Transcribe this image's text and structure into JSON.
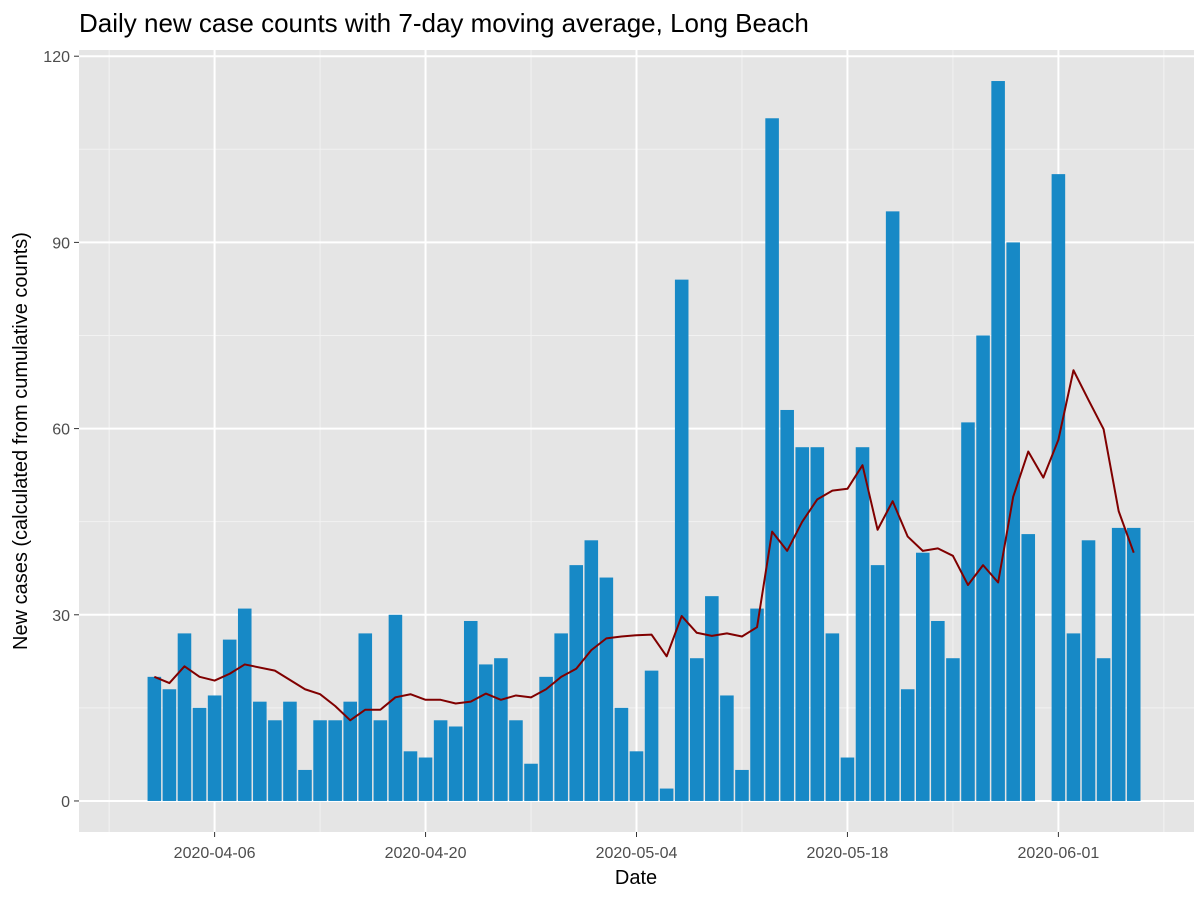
{
  "chart_data": {
    "type": "bar",
    "title": "Daily new case counts with 7-day moving average, Long Beach",
    "xlabel": "Date",
    "ylabel": "New cases (calculated from cumulative counts)",
    "ylim": [
      -5,
      121
    ],
    "xlim": [
      "2020-03-28",
      "2020-06-10"
    ],
    "y_ticks": [
      0,
      30,
      60,
      90,
      120
    ],
    "x_ticks": [
      "2020-04-06",
      "2020-04-20",
      "2020-05-04",
      "2020-05-18",
      "2020-06-01"
    ],
    "grid": true,
    "colors": {
      "panel": "#e5e5e5",
      "grid_major": "#ffffff",
      "bar": "#1789c6",
      "line": "#800000"
    },
    "series": [
      {
        "type": "bar",
        "x": [
          "2020-04-02",
          "2020-04-03",
          "2020-04-04",
          "2020-04-05",
          "2020-04-06",
          "2020-04-07",
          "2020-04-08",
          "2020-04-09",
          "2020-04-10",
          "2020-04-11",
          "2020-04-12",
          "2020-04-13",
          "2020-04-14",
          "2020-04-15",
          "2020-04-16",
          "2020-04-17",
          "2020-04-18",
          "2020-04-19",
          "2020-04-20",
          "2020-04-21",
          "2020-04-22",
          "2020-04-23",
          "2020-04-24",
          "2020-04-25",
          "2020-04-26",
          "2020-04-27",
          "2020-04-28",
          "2020-04-29",
          "2020-04-30",
          "2020-05-01",
          "2020-05-02",
          "2020-05-03",
          "2020-05-04",
          "2020-05-05",
          "2020-05-06",
          "2020-05-07",
          "2020-05-08",
          "2020-05-09",
          "2020-05-10",
          "2020-05-11",
          "2020-05-12",
          "2020-05-13",
          "2020-05-14",
          "2020-05-15",
          "2020-05-16",
          "2020-05-17",
          "2020-05-18",
          "2020-05-19",
          "2020-05-20",
          "2020-05-21",
          "2020-05-22",
          "2020-05-23",
          "2020-05-24",
          "2020-05-25",
          "2020-05-26",
          "2020-05-27",
          "2020-05-28",
          "2020-05-29",
          "2020-05-30",
          "2020-06-01",
          "2020-06-02",
          "2020-06-03",
          "2020-06-04",
          "2020-06-05",
          "2020-06-06"
        ],
        "values": [
          20,
          18,
          27,
          15,
          17,
          26,
          31,
          16,
          13,
          16,
          5,
          13,
          13,
          16,
          27,
          13,
          30,
          8,
          7,
          13,
          12,
          29,
          22,
          23,
          13,
          6,
          20,
          27,
          38,
          42,
          36,
          15,
          8,
          21,
          2,
          84,
          23,
          33,
          17,
          5,
          31,
          110,
          63,
          57,
          57,
          27,
          7,
          57,
          38,
          95,
          18,
          40,
          29,
          23,
          61,
          75,
          116,
          90,
          43,
          101,
          27,
          42,
          23,
          44,
          44
        ]
      },
      {
        "type": "line",
        "x": [
          "2020-04-02",
          "2020-04-03",
          "2020-04-04",
          "2020-04-05",
          "2020-04-06",
          "2020-04-07",
          "2020-04-08",
          "2020-04-10",
          "2020-04-12",
          "2020-04-13",
          "2020-04-14",
          "2020-04-15",
          "2020-04-16",
          "2020-04-17",
          "2020-04-18",
          "2020-04-19",
          "2020-04-20",
          "2020-04-21",
          "2020-04-22",
          "2020-04-23",
          "2020-04-24",
          "2020-04-25",
          "2020-04-26",
          "2020-04-27",
          "2020-04-28",
          "2020-04-29",
          "2020-04-30",
          "2020-05-01",
          "2020-05-02",
          "2020-05-03",
          "2020-05-04",
          "2020-05-05",
          "2020-05-06",
          "2020-05-07",
          "2020-05-08",
          "2020-05-09",
          "2020-05-10",
          "2020-05-11",
          "2020-05-12",
          "2020-05-13",
          "2020-05-14",
          "2020-05-15",
          "2020-05-16",
          "2020-05-17",
          "2020-05-18",
          "2020-05-19",
          "2020-05-20",
          "2020-05-21",
          "2020-05-22",
          "2020-05-23",
          "2020-05-24",
          "2020-05-25",
          "2020-05-26",
          "2020-05-27",
          "2020-05-28",
          "2020-05-29",
          "2020-05-30",
          "2020-05-31",
          "2020-06-01",
          "2020-06-02",
          "2020-06-03",
          "2020-06-04",
          "2020-06-05",
          "2020-06-06"
        ],
        "values": [
          20,
          19,
          21.7,
          20,
          19.4,
          20.5,
          22,
          21,
          18,
          17.2,
          15.3,
          13,
          14.7,
          14.7,
          16.7,
          17.2,
          16.3,
          16.3,
          15.7,
          16,
          17.3,
          16.3,
          17,
          16.7,
          18,
          20,
          21.3,
          24.3,
          26.2,
          26.5,
          26.7,
          26.8,
          23.3,
          29.8,
          27.1,
          26.6,
          27,
          26.5,
          28,
          43.4,
          40.3,
          45,
          48.6,
          50,
          50.3,
          54.1,
          43.7,
          48.3,
          42.6,
          40.3,
          40.7,
          39.5,
          34.8,
          38,
          35.2,
          49,
          56.3,
          52.1,
          58.2,
          69.4,
          64.6,
          59.9,
          46.7,
          40
        ]
      }
    ]
  }
}
